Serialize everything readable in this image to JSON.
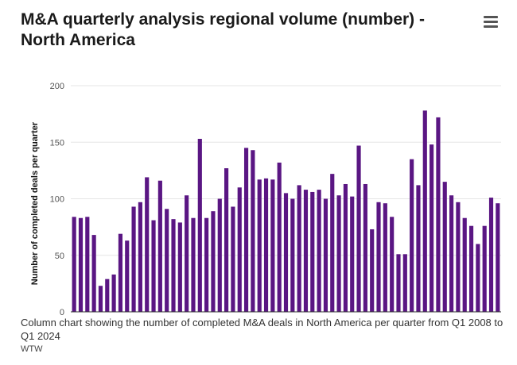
{
  "header": {
    "title": "M&A quarterly analysis regional volume (number) - North America",
    "menu_icon": "hamburger-menu-icon"
  },
  "caption": "Column chart showing the number of completed M&A deals in North America per quarter from Q1 2008 to Q1 2024",
  "source": "WTW",
  "colors": {
    "bar": "#5a1683",
    "grid": "#e6e6e6",
    "axis": "#333333"
  },
  "chart_data": {
    "type": "bar",
    "title": "M&A quarterly analysis regional volume (number) - North America",
    "xlabel": "",
    "ylabel": "Number of completed deals per quarter",
    "ylim": [
      0,
      200
    ],
    "yticks": [
      0,
      50,
      100,
      150,
      200
    ],
    "grid": true,
    "period": "Q1 2008 to Q1 2024",
    "values": [
      84,
      83,
      84,
      68,
      23,
      29,
      33,
      69,
      63,
      93,
      97,
      119,
      81,
      116,
      91,
      82,
      79,
      103,
      83,
      153,
      83,
      89,
      100,
      127,
      93,
      110,
      145,
      143,
      117,
      118,
      117,
      132,
      105,
      100,
      112,
      108,
      106,
      108,
      100,
      122,
      103,
      113,
      102,
      147,
      113,
      73,
      97,
      96,
      84,
      51,
      51,
      135,
      112,
      178,
      148,
      172,
      115,
      103,
      97,
      83,
      76,
      60,
      76,
      101,
      96
    ]
  }
}
